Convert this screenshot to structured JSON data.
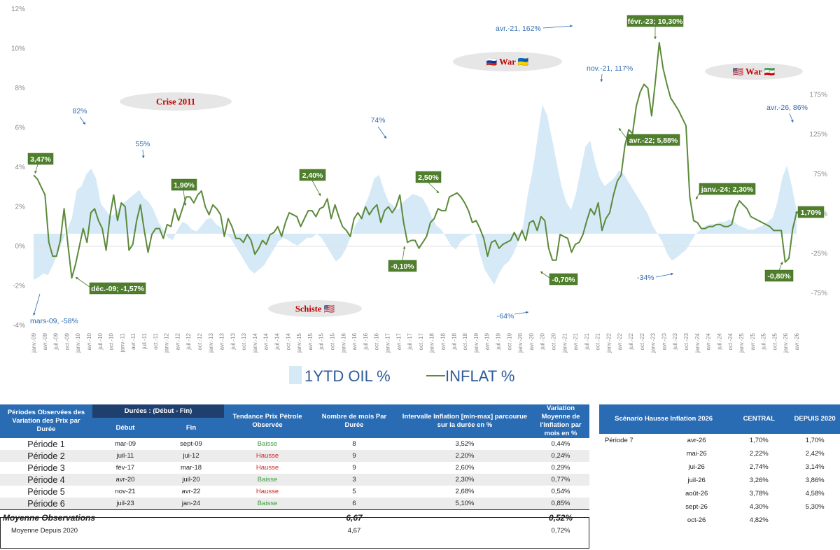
{
  "chart_data": {
    "type": "line",
    "x_tick_labels": [
      "janv.-09",
      "avr.-09",
      "juil.-09",
      "oct.-09",
      "janv.-10",
      "avr.-10",
      "juil.-10",
      "oct.-10",
      "janv.-11",
      "avr.-11",
      "juil.-11",
      "oct.-11",
      "janv.-12",
      "avr.-12",
      "juil.-12",
      "oct.-12",
      "janv.-13",
      "avr.-13",
      "juil.-13",
      "oct.-13",
      "janv.-14",
      "avr.-14",
      "juil.-14",
      "oct.-14",
      "janv.-15",
      "avr.-15",
      "juil.-15",
      "oct.-15",
      "janv.-16",
      "avr.-16",
      "juil.-16",
      "oct.-16",
      "janv.-17",
      "avr.-17",
      "juil.-17",
      "oct.-17",
      "janv.-18",
      "avr.-18",
      "juil.-18",
      "oct.-18",
      "janv.-19",
      "avr.-19",
      "juil.-19",
      "oct.-19",
      "janv.-20",
      "avr.-20",
      "juil.-20",
      "oct.-20",
      "janv.-21",
      "avr.-21",
      "juil.-21",
      "oct.-21",
      "janv.-22",
      "avr.-22",
      "juil.-22",
      "oct.-22",
      "janv.-23",
      "avr.-23",
      "juil.-23",
      "oct.-23",
      "janv.-24",
      "avr.-24",
      "juil.-24",
      "oct.-24",
      "janv.-25",
      "avr.-25",
      "juil.-25",
      "oct.-25",
      "janv.-26",
      "avr.-26"
    ],
    "y_left_ticks": [
      "12%",
      "10%",
      "8%",
      "6%",
      "4%",
      "2%",
      "0%",
      "-2%",
      "-4%"
    ],
    "y_left_range": [
      -4,
      12
    ],
    "y_right_ticks": [
      "175%",
      "125%",
      "75%",
      "25%",
      "-25%",
      "-75%"
    ],
    "y_right_range": [
      -75,
      175
    ],
    "legend": [
      "1YTD OIL %",
      "INFLAT %"
    ],
    "legend_placement": "bottom-center",
    "grid": false,
    "series": [
      {
        "name": "INFLAT %",
        "axis": "left",
        "color": "#5b8a3a",
        "values": [
          3.6,
          3.4,
          3.0,
          2.6,
          0.2,
          -0.5,
          -0.5,
          0.3,
          1.9,
          0.1,
          -1.6,
          -0.9,
          0.0,
          0.9,
          0.2,
          1.7,
          1.9,
          1.3,
          0.9,
          -0.2,
          1.5,
          2.6,
          1.3,
          2.2,
          2.0,
          -0.2,
          0.1,
          1.3,
          2.1,
          0.8,
          -0.3,
          0.6,
          0.9,
          0.9,
          0.4,
          1.1,
          1.0,
          1.9,
          1.3,
          1.9,
          2.5,
          2.5,
          2.2,
          2.6,
          2.8,
          2.0,
          1.6,
          2.1,
          1.9,
          1.6,
          0.5,
          1.4,
          1.0,
          0.4,
          0.4,
          0.2,
          0.6,
          0.3,
          -0.4,
          -0.1,
          0.3,
          0.1,
          0.6,
          0.7,
          1.0,
          0.5,
          1.2,
          1.7,
          1.6,
          1.5,
          1.0,
          1.4,
          1.8,
          1.8,
          1.5,
          1.9,
          2.0,
          2.4,
          1.4,
          2.1,
          1.5,
          1.0,
          0.8,
          0.5,
          1.4,
          1.7,
          1.4,
          2.0,
          1.6,
          1.9,
          2.1,
          1.2,
          1.8,
          2.0,
          1.7,
          2.0,
          2.6,
          1.2,
          0.2,
          0.3,
          0.3,
          -0.1,
          0.2,
          0.5,
          1.2,
          1.4,
          1.9,
          1.8,
          1.8,
          2.5,
          2.6,
          2.7,
          2.5,
          2.2,
          1.8,
          1.2,
          1.3,
          0.9,
          0.4,
          -0.5,
          0.2,
          0.3,
          -0.1,
          0.1,
          0.2,
          0.3,
          0.7,
          0.3,
          0.8,
          0.3,
          1.2,
          1.3,
          0.8,
          1.5,
          1.3,
          -0.1,
          -0.7,
          -0.7,
          0.6,
          0.5,
          0.4,
          -0.3,
          0.1,
          0.2,
          0.6,
          1.3,
          1.9,
          1.6,
          2.2,
          0.8,
          1.4,
          1.7,
          2.6,
          3.3,
          3.6,
          5.1,
          5.9,
          5.7,
          7.1,
          7.8,
          8.2,
          8.0,
          6.6,
          8.4,
          10.3,
          9.0,
          8.2,
          7.5,
          7.2,
          6.9,
          6.5,
          6.1,
          2.5,
          1.3,
          1.2,
          0.9,
          0.9,
          1.0,
          1.0,
          1.1,
          1.1,
          1.0,
          1.0,
          1.1,
          1.9,
          2.3,
          2.1,
          1.9,
          1.5,
          1.4,
          1.3,
          1.2,
          1.1,
          1.0,
          0.8,
          0.8,
          0.8,
          -0.8,
          -0.6,
          0.9,
          1.7
        ]
      },
      {
        "name": "1YTD OIL %",
        "axis": "right",
        "color": "#d6e9f7",
        "values": [
          -58,
          -55,
          -50,
          -52,
          -40,
          -25,
          -10,
          5,
          20,
          55,
          60,
          75,
          82,
          70,
          38,
          30,
          22,
          25,
          35,
          40,
          45,
          50,
          55,
          45,
          40,
          30,
          15,
          5,
          -5,
          -8,
          5,
          15,
          12,
          5,
          3,
          10,
          18,
          20,
          12,
          8,
          0,
          -5,
          -15,
          -25,
          -35,
          -45,
          -50,
          -45,
          -40,
          -30,
          -20,
          -10,
          -5,
          -8,
          -12,
          -15,
          -10,
          -5,
          -5,
          0,
          -5,
          -15,
          -25,
          -35,
          -30,
          -20,
          -5,
          10,
          20,
          35,
          50,
          70,
          74,
          55,
          40,
          35,
          30,
          40,
          45,
          50,
          48,
          45,
          35,
          20,
          10,
          5,
          -5,
          -15,
          -20,
          -10,
          -5,
          -2,
          0,
          -25,
          -45,
          -55,
          -64,
          -50,
          -40,
          -35,
          -25,
          -10,
          10,
          50,
          80,
          120,
          162,
          150,
          120,
          90,
          60,
          40,
          30,
          50,
          80,
          110,
          117,
          90,
          70,
          60,
          65,
          70,
          80,
          75,
          65,
          55,
          45,
          35,
          25,
          10,
          0,
          -10,
          -25,
          -34,
          -30,
          -25,
          -20,
          -10,
          0,
          5,
          10,
          12,
          12,
          15,
          15,
          18,
          15,
          10,
          8,
          5,
          5,
          8,
          10,
          15,
          20,
          40,
          70,
          86,
          60,
          30
        ]
      }
    ],
    "annotations_blue": [
      {
        "text": "mars-09, -58%"
      },
      {
        "text": "82%"
      },
      {
        "text": "55%"
      },
      {
        "text": "74%"
      },
      {
        "text": "-64%"
      },
      {
        "text": "avr.-21, 162%"
      },
      {
        "text": "nov.-21, 117%"
      },
      {
        "text": "-34%"
      },
      {
        "text": "avr.-26, 86%"
      }
    ],
    "annotations_green": [
      {
        "text": "3,47%"
      },
      {
        "text": "déc.-09; -1,57%"
      },
      {
        "text": "1,90%"
      },
      {
        "text": "2,40%"
      },
      {
        "text": "-0,10%"
      },
      {
        "text": "2,50%"
      },
      {
        "text": "-0,70%"
      },
      {
        "text": "avr.-22; 5,88%"
      },
      {
        "text": "févr.-23; 10,30%"
      },
      {
        "text": "janv.-24; 2,30%"
      },
      {
        "text": "-0,80%"
      },
      {
        "text": "1,70%"
      }
    ],
    "callouts": [
      {
        "text": "Crise 2011"
      },
      {
        "text": "Schiste 🇺🇸"
      },
      {
        "text": "🇷🇺 War 🇺🇦"
      },
      {
        "text": "🇺🇸 War 🇮🇷"
      }
    ]
  },
  "table_periods": {
    "header": {
      "col1": "Périodes Observées des Variation des Prix par Durée",
      "durees": "Durées : (Début - Fin)",
      "debut": "Début",
      "fin": "Fin",
      "tendance": "Tendance Prix Pétrole Observée",
      "nombre": "Nombre de mois Par Durée",
      "intervalle": "Intervalle Inflation [min-max] parcourue sur la durée en %",
      "variation": "Variation Moyenne de l'Inflation par mois en %"
    },
    "rows": [
      {
        "periode": "Période 1",
        "debut": "mar-09",
        "fin": "sept-09",
        "tendance": "Baisse",
        "mois": "8",
        "intervalle": "3,52%",
        "variation": "0,44%"
      },
      {
        "periode": "Période 2",
        "debut": "juil-11",
        "fin": "jui-12",
        "tendance": "Hausse",
        "mois": "9",
        "intervalle": "2,20%",
        "variation": "0,24%"
      },
      {
        "periode": "Période 3",
        "debut": "fév-17",
        "fin": "mar-18",
        "tendance": "Hausse",
        "mois": "9",
        "intervalle": "2,60%",
        "variation": "0,29%"
      },
      {
        "periode": "Période 4",
        "debut": "avr-20",
        "fin": "juil-20",
        "tendance": "Baisse",
        "mois": "3",
        "intervalle": "2,30%",
        "variation": "0,77%"
      },
      {
        "periode": "Période 5",
        "debut": "nov-21",
        "fin": "avr-22",
        "tendance": "Hausse",
        "mois": "5",
        "intervalle": "2,68%",
        "variation": "0,54%"
      },
      {
        "periode": "Période 6",
        "debut": "juil-23",
        "fin": "jan-24",
        "tendance": "Baisse",
        "mois": "6",
        "intervalle": "5,10%",
        "variation": "0,85%"
      }
    ],
    "moyenne_obs": {
      "label": "Moyenne Observations",
      "mois": "6,67",
      "variation": "0,52%"
    },
    "moyenne_2020": {
      "label": "Moyenne Depuis 2020",
      "mois": "4,67",
      "variation": "0,72%"
    }
  },
  "table_scenario": {
    "header": {
      "title": "Scénario Hausse Inflation 2026",
      "central": "CENTRAL",
      "depuis": "DEPUIS 2020"
    },
    "rows": [
      {
        "label": "Période 7",
        "mois": "avr-26",
        "central": "1,70%",
        "depuis": "1,70%"
      },
      {
        "label": "",
        "mois": "mai-26",
        "central": "2,22%",
        "depuis": "2,42%"
      },
      {
        "label": "",
        "mois": "jui-26",
        "central": "2,74%",
        "depuis": "3,14%"
      },
      {
        "label": "",
        "mois": "juil-26",
        "central": "3,26%",
        "depuis": "3,86%"
      },
      {
        "label": "",
        "mois": "août-26",
        "central": "3,78%",
        "depuis": "4,58%"
      },
      {
        "label": "",
        "mois": "sept-26",
        "central": "4,30%",
        "depuis": "5,30%"
      },
      {
        "label": "",
        "mois": "oct-26",
        "central": "4,82%",
        "depuis": ""
      }
    ]
  }
}
